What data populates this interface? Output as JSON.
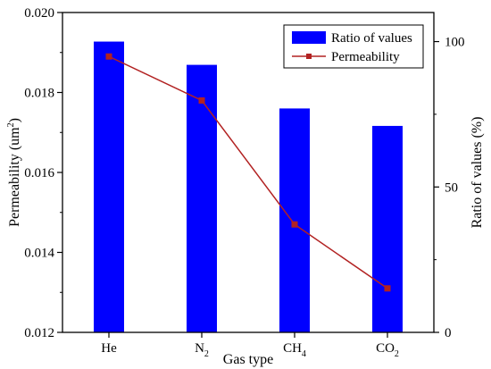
{
  "chart_data": {
    "type": "bar+line",
    "categories": [
      {
        "base": "He",
        "sub": ""
      },
      {
        "base": "N",
        "sub": "2"
      },
      {
        "base": "CH",
        "sub": "4"
      },
      {
        "base": "CO",
        "sub": "2"
      }
    ],
    "xlabel": "Gas type",
    "ylabel_left": {
      "prefix": "Permeability (um",
      "sup": "2",
      "suffix": ")"
    },
    "ylabel_right": "Ratio of values (%)",
    "ylim_left": [
      0.012,
      0.02
    ],
    "yticks_left": [
      "0.012",
      "0.014",
      "0.016",
      "0.018",
      "0.020"
    ],
    "ylim_right": [
      0,
      110
    ],
    "yticks_right": [
      "0",
      "50",
      "100"
    ],
    "series": [
      {
        "name": "Ratio of values",
        "kind": "bar",
        "axis": "right",
        "color": "#0000ff",
        "values": [
          100,
          92,
          77,
          71
        ]
      },
      {
        "name": "Permeability",
        "kind": "line",
        "axis": "left",
        "color": "#b22222",
        "values": [
          0.0189,
          0.0178,
          0.0147,
          0.0131
        ]
      }
    ],
    "legend": "top-right",
    "grid": false
  }
}
